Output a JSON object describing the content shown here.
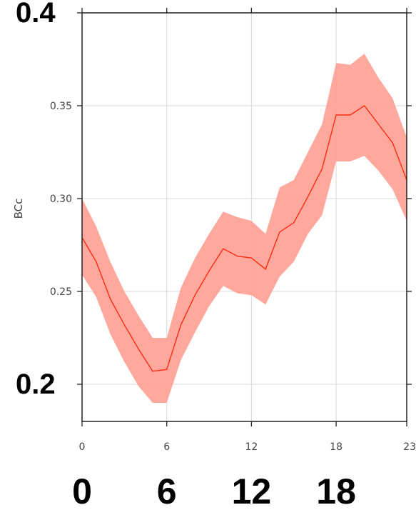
{
  "chart_data": {
    "type": "line",
    "ylabel": "BCc",
    "xlim": [
      0,
      23
    ],
    "ylim": [
      0.18,
      0.4
    ],
    "grid": true,
    "x_ticks": [
      0,
      6,
      12,
      18,
      23
    ],
    "x_tick_labels": [
      "0",
      "6",
      "12",
      "18",
      "23"
    ],
    "y_ticks": [
      0.25,
      0.3,
      0.35
    ],
    "y_tick_labels": [
      "0.25",
      "0.30",
      "0.35"
    ],
    "overlay_x_labels": [
      "0",
      "6",
      "12",
      "18"
    ],
    "overlay_y_labels": [
      {
        "value": 0.4,
        "text": "0.4"
      },
      {
        "value": 0.2,
        "text": "0.2"
      }
    ],
    "series": [
      {
        "color": "#ff2a10",
        "band_color": "#ff9e94",
        "x": [
          0,
          1,
          2,
          3,
          4,
          5,
          6,
          7,
          8,
          9,
          10,
          11,
          12,
          13,
          14,
          15,
          16,
          17,
          18,
          19,
          20,
          21,
          22,
          23
        ],
        "values": [
          0.279,
          0.266,
          0.246,
          0.232,
          0.219,
          0.207,
          0.208,
          0.232,
          0.248,
          0.261,
          0.273,
          0.269,
          0.268,
          0.262,
          0.282,
          0.287,
          0.301,
          0.316,
          0.345,
          0.345,
          0.35,
          0.34,
          0.33,
          0.31
        ],
        "lower": [
          0.259,
          0.247,
          0.227,
          0.212,
          0.199,
          0.19,
          0.19,
          0.213,
          0.228,
          0.242,
          0.253,
          0.249,
          0.248,
          0.243,
          0.258,
          0.266,
          0.281,
          0.291,
          0.32,
          0.32,
          0.323,
          0.315,
          0.305,
          0.288
        ],
        "upper": [
          0.3,
          0.285,
          0.266,
          0.25,
          0.237,
          0.225,
          0.225,
          0.252,
          0.268,
          0.281,
          0.293,
          0.29,
          0.288,
          0.281,
          0.306,
          0.31,
          0.325,
          0.34,
          0.373,
          0.372,
          0.378,
          0.365,
          0.354,
          0.333
        ]
      }
    ]
  }
}
